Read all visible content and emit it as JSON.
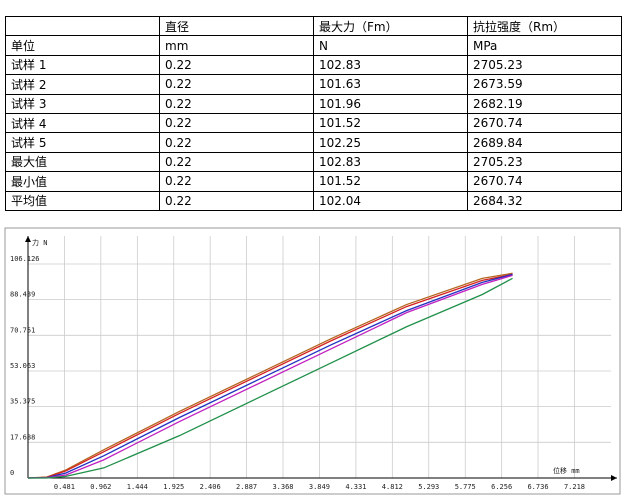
{
  "table": {
    "header": [
      "",
      "直径",
      "最大力（Fm）",
      "抗拉强度（Rm）"
    ],
    "rows": [
      [
        "单位",
        "mm",
        "N",
        "MPa"
      ],
      [
        "试样 1",
        "0.22",
        "102.83",
        "2705.23"
      ],
      [
        "试样 2",
        "0.22",
        "101.63",
        "2673.59"
      ],
      [
        "试样 3",
        "0.22",
        "101.96",
        "2682.19"
      ],
      [
        "试样 4",
        "0.22",
        "101.52",
        "2670.74"
      ],
      [
        "试样 5",
        "0.22",
        "102.25",
        "2689.84"
      ],
      [
        "最大值",
        "0.22",
        "102.83",
        "2705.23"
      ],
      [
        "最小值",
        "0.22",
        "101.52",
        "2670.74"
      ],
      [
        "平均值",
        "0.22",
        "102.04",
        "2684.32"
      ]
    ]
  },
  "chart_data": {
    "type": "line",
    "y_label": "力 N",
    "x_label": "位移 mm",
    "x": [
      0,
      0.25,
      0.5,
      1,
      2,
      3,
      4,
      5,
      6,
      6.4
    ],
    "series": [
      {
        "color": "#b5651d",
        "values": [
          0,
          0.5,
          4,
          14,
          33,
          51,
          69,
          86,
          99,
          101.5
        ]
      },
      {
        "color": "#d62020",
        "values": [
          0,
          0.3,
          3.5,
          13,
          32,
          50,
          68,
          85,
          98,
          101
        ]
      },
      {
        "color": "#2030c0",
        "values": [
          0,
          0.2,
          2.5,
          11,
          30,
          48,
          66,
          83,
          97,
          101
        ]
      },
      {
        "color": "#c020c0",
        "values": [
          0,
          0.1,
          1.5,
          9,
          28,
          46,
          64,
          82,
          96,
          100.5
        ]
      },
      {
        "color": "#20904a",
        "values": [
          0,
          0,
          0.8,
          5,
          21,
          39,
          57,
          75,
          91,
          99
        ]
      }
    ],
    "xlim": [
      0,
      7.7
    ],
    "ylim": [
      0,
      120
    ],
    "xticks": [
      0.481,
      0.962,
      1.444,
      1.925,
      2.406,
      2.887,
      3.368,
      3.849,
      4.331,
      4.812,
      5.293,
      5.775,
      6.256,
      6.736,
      7.218
    ],
    "yticks": [
      0,
      17.688,
      35.375,
      53.063,
      70.751,
      88.439,
      106.126
    ],
    "grid": true
  }
}
